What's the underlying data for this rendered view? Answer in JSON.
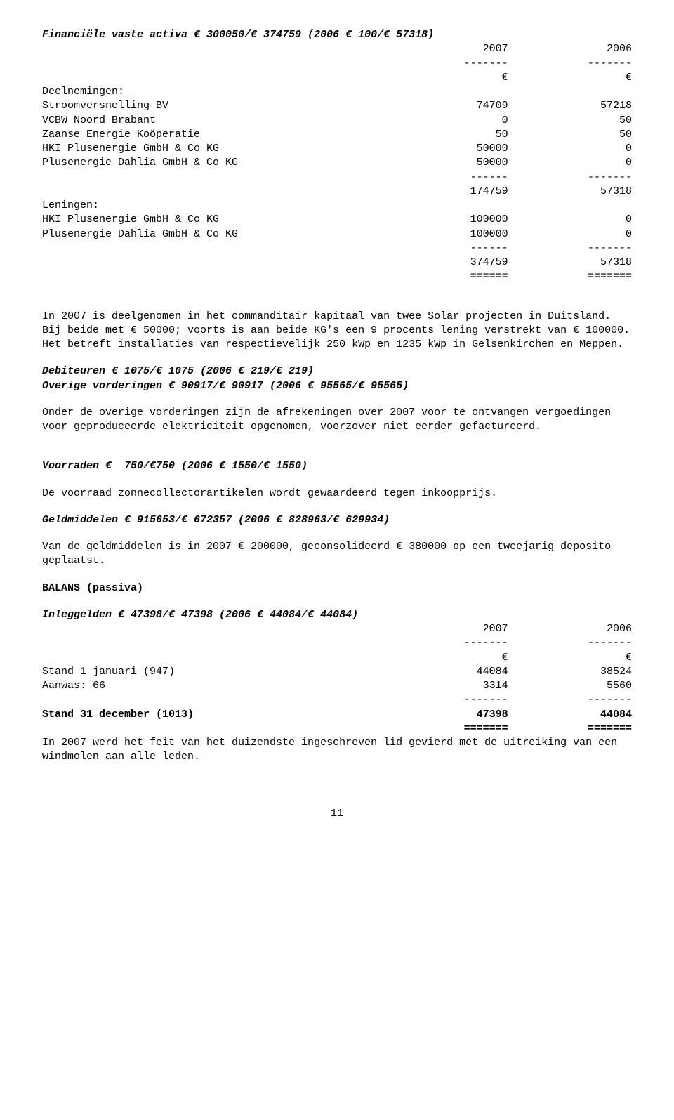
{
  "heading1": "Financiële vaste activa € 300050/€ 374759 (2006 € 100/€ 57318)",
  "table1": {
    "header_years": [
      "2007",
      "2006"
    ],
    "header_sep": [
      "-------",
      "-------"
    ],
    "currency_row": [
      "€",
      "€"
    ],
    "rows": [
      {
        "label": "Deelnemingen:",
        "v1": "",
        "v2": ""
      },
      {
        "label": "Stroomversnelling BV",
        "v1": "74709",
        "v2": "57218"
      },
      {
        "label": "VCBW Noord Brabant",
        "v1": "0",
        "v2": "50"
      },
      {
        "label": "Zaanse Energie Koöperatie",
        "v1": "50",
        "v2": "50"
      },
      {
        "label": "HKI Plusenergie GmbH & Co KG",
        "v1": "50000",
        "v2": "0"
      },
      {
        "label": "Plusenergie Dahlia GmbH & Co KG",
        "v1": "50000",
        "v2": "0"
      },
      {
        "label": "",
        "v1": "------",
        "v2": "-------"
      },
      {
        "label": "",
        "v1": "174759",
        "v2": "57318"
      },
      {
        "label": "Leningen:",
        "v1": "",
        "v2": ""
      },
      {
        "label": "HKI Plusenergie GmbH & Co KG",
        "v1": "100000",
        "v2": "0"
      },
      {
        "label": "Plusenergie Dahlia GmbH & Co KG",
        "v1": "100000",
        "v2": "0"
      },
      {
        "label": "",
        "v1": "------",
        "v2": "-------"
      },
      {
        "label": "",
        "v1": "374759",
        "v2": "57318"
      },
      {
        "label": "",
        "v1": "======",
        "v2": "======="
      }
    ]
  },
  "para1": "In 2007 is deelgenomen in het commanditair kapitaal van twee Solar projecten in Duitsland. Bij beide met € 50000; voorts is aan beide KG's een 9 procents lening verstrekt van € 100000. Het betreft installaties van respectievelijk 250 kWp en 1235 kWp in Gelsenkirchen en Meppen.",
  "heading2": "Debiteuren € 1075/€ 1075 (2006 € 219/€ 219)",
  "heading3": "Overige vorderingen € 90917/€ 90917 (2006 € 95565/€ 95565)",
  "para2": "Onder de overige vorderingen zijn de afrekeningen over 2007 voor te ontvangen vergoedingen voor geproduceerde elektriciteit opgenomen, voorzover niet eerder gefactureerd.",
  "heading4": "Voorraden €  750/€750 (2006 € 1550/€ 1550)",
  "para3": "De voorraad zonnecollectorartikelen wordt gewaardeerd tegen inkoopprijs.",
  "heading5": "Geldmiddelen € 915653/€ 672357 (2006 € 828963/€ 629934)",
  "para4": "Van de geldmiddelen is in 2007 € 200000, geconsolideerd € 380000 op een tweejarig deposito geplaatst.",
  "heading6": "BALANS (passiva)",
  "heading7": "Inleggelden € 47398/€ 47398 (2006 € 44084/€ 44084)",
  "table2": {
    "header_years": [
      "2007",
      "2006"
    ],
    "header_sep": [
      "-------",
      "-------"
    ],
    "currency_row": [
      "€",
      "€"
    ],
    "rows": [
      {
        "label": "Stand 1 januari (947)",
        "v1": "44084",
        "v2": "38524",
        "bold": false
      },
      {
        "label": "Aanwas: 66",
        "v1": "3314",
        "v2": "5560",
        "bold": false
      },
      {
        "label": "",
        "v1": "-------",
        "v2": "-------",
        "bold": false
      },
      {
        "label": "Stand 31 december (1013)",
        "v1": "47398",
        "v2": "44084",
        "bold": true
      },
      {
        "label": "",
        "v1": "=======",
        "v2": "=======",
        "bold": true
      }
    ]
  },
  "para5": "In 2007 werd het feit van het duizendste ingeschreven lid gevierd met de uitreiking van een windmolen aan alle leden.",
  "page_number": "11"
}
